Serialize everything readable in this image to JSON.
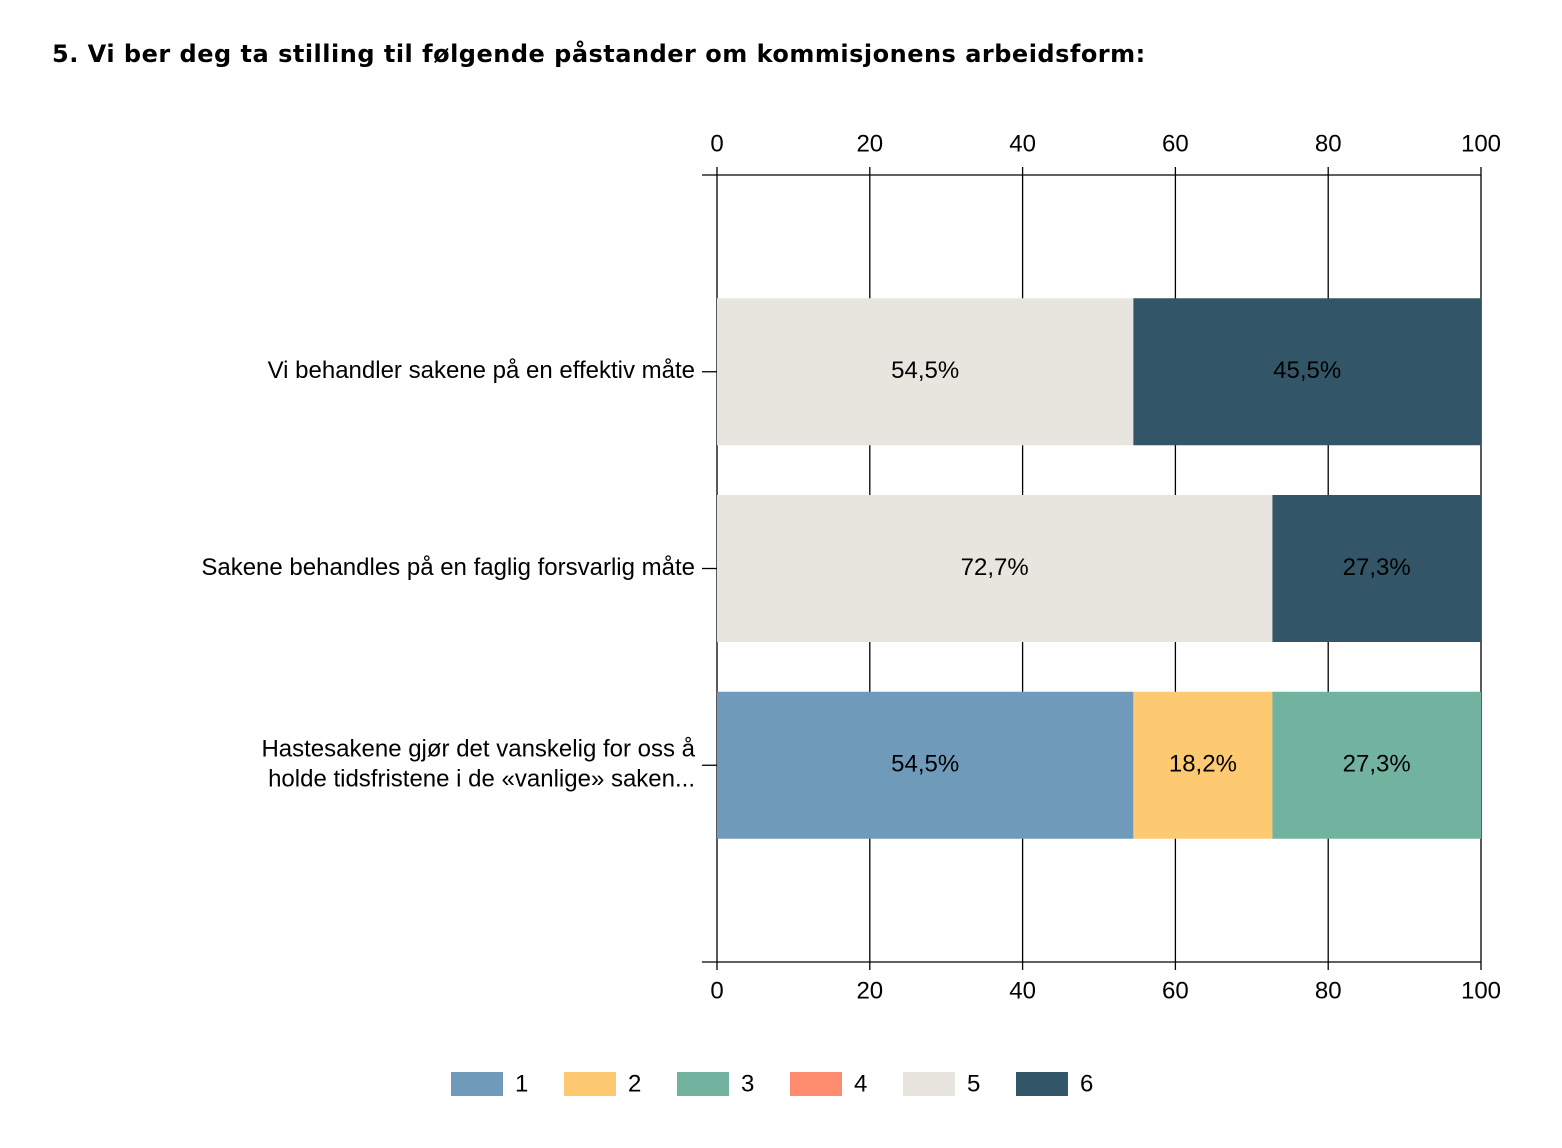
{
  "chart_data": {
    "type": "stacked-bar-horizontal",
    "title": "5. Vi ber deg ta stilling til følgende påstander om kommisjonens arbeidsform:",
    "categories": [
      "Vi behandler sakene på en effektiv måte",
      "Sakene behandles på en faglig forsvarlig måte",
      "Hastesakene gjør det vanskelig for oss å\nholde tidsfristene i de «vanlige» saken..."
    ],
    "series": [
      {
        "name": "1",
        "color": "#6f9ab9",
        "values": [
          null,
          null,
          54.5
        ],
        "value_labels": [
          null,
          null,
          "54,5%"
        ]
      },
      {
        "name": "2",
        "color": "#fdc971",
        "values": [
          null,
          null,
          18.2
        ],
        "value_labels": [
          null,
          null,
          "18,2%"
        ]
      },
      {
        "name": "3",
        "color": "#72b39f",
        "values": [
          null,
          null,
          27.3
        ],
        "value_labels": [
          null,
          null,
          "27,3%"
        ]
      },
      {
        "name": "4",
        "color": "#fd8b6e",
        "values": [
          null,
          null,
          null
        ],
        "value_labels": [
          null,
          null,
          null
        ]
      },
      {
        "name": "5",
        "color": "#e7e5de",
        "values": [
          54.5,
          72.7,
          null
        ],
        "value_labels": [
          "54,5%",
          "72,7%",
          null
        ]
      },
      {
        "name": "6",
        "color": "#325667",
        "values": [
          45.5,
          27.3,
          null
        ],
        "value_labels": [
          "45,5%",
          "27,3%",
          null
        ]
      }
    ],
    "xlim": [
      0,
      100
    ],
    "xticks": [
      0,
      20,
      40,
      60,
      80,
      100
    ],
    "grid": true,
    "legend": "bottom"
  }
}
